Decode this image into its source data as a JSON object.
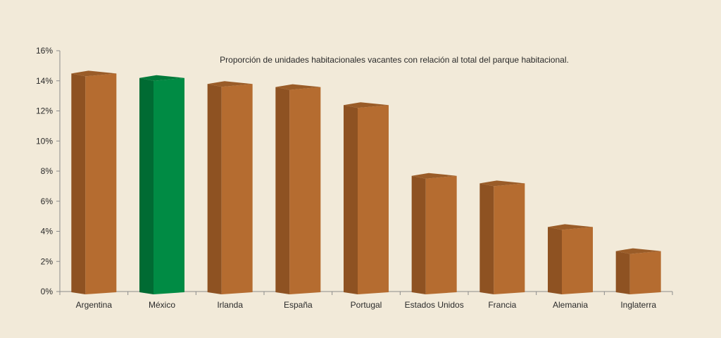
{
  "chart_data": {
    "type": "bar",
    "title": "Proporción de unidades habitacionales vacantes con relación al total del parque habitacional.",
    "xlabel": "",
    "ylabel": "",
    "ylim": [
      0,
      16
    ],
    "y_ticks": [
      "0%",
      "2%",
      "4%",
      "6%",
      "8%",
      "10%",
      "12%",
      "14%",
      "16%"
    ],
    "y_tick_values": [
      0,
      2,
      4,
      6,
      8,
      10,
      12,
      14,
      16
    ],
    "categories": [
      "Argentina",
      "México",
      "Irlanda",
      "España",
      "Portugal",
      "Estados Unidos",
      "Francia",
      "Alemania",
      "Inglaterra"
    ],
    "values": [
      14.3,
      14.0,
      13.6,
      13.4,
      12.2,
      7.5,
      7.0,
      4.1,
      2.5
    ],
    "highlight_category": "México",
    "grid": false,
    "legend": "none",
    "colors": {
      "bar_front": "#b56c30",
      "bar_side": "#8e5222",
      "bar_top": "#9a5c28",
      "highlight_front": "#008b44",
      "highlight_side": "#006b33",
      "highlight_top": "#007a3a",
      "axis": "#8c8c8c",
      "text": "#2a2a2a",
      "background": "#f2ead9"
    }
  }
}
